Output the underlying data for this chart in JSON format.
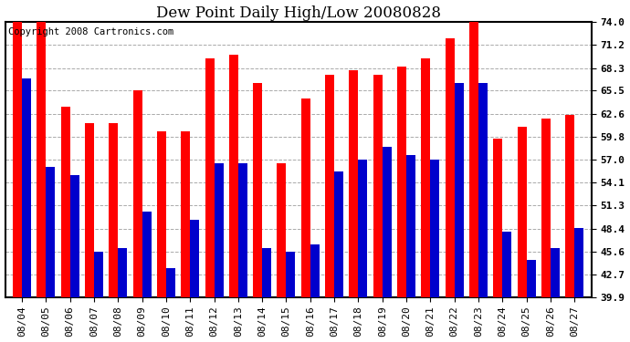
{
  "title": "Dew Point Daily High/Low 20080828",
  "copyright": "Copyright 2008 Cartronics.com",
  "dates": [
    "08/04",
    "08/05",
    "08/06",
    "08/07",
    "08/08",
    "08/09",
    "08/10",
    "08/11",
    "08/12",
    "08/13",
    "08/14",
    "08/15",
    "08/16",
    "08/17",
    "08/18",
    "08/19",
    "08/20",
    "08/21",
    "08/22",
    "08/23",
    "08/24",
    "08/25",
    "08/26",
    "08/27"
  ],
  "highs": [
    74.0,
    74.0,
    63.5,
    61.5,
    61.5,
    65.5,
    60.5,
    60.5,
    69.5,
    70.0,
    66.5,
    56.5,
    64.5,
    67.5,
    68.0,
    67.5,
    68.5,
    69.5,
    72.0,
    74.5,
    59.5,
    61.0,
    62.0,
    62.5
  ],
  "lows": [
    67.0,
    56.0,
    55.0,
    45.5,
    46.0,
    50.5,
    43.5,
    49.5,
    56.5,
    56.5,
    46.0,
    45.5,
    46.5,
    55.5,
    57.0,
    58.5,
    57.5,
    57.0,
    66.5,
    66.5,
    48.0,
    44.5,
    46.0,
    48.5
  ],
  "high_color": "#FF0000",
  "low_color": "#0000CC",
  "ymin": 39.9,
  "ymax": 74.0,
  "yticks": [
    39.9,
    42.7,
    45.6,
    48.4,
    51.3,
    54.1,
    57.0,
    59.8,
    62.6,
    65.5,
    68.3,
    71.2,
    74.0
  ],
  "ytick_labels": [
    "39.9",
    "42.7",
    "45.6",
    "48.4",
    "51.3",
    "54.1",
    "57.0",
    "59.8",
    "62.6",
    "65.5",
    "68.3",
    "71.2",
    "74.0"
  ],
  "bg_color": "#FFFFFF",
  "grid_color": "#AAAAAA",
  "bar_width": 0.38,
  "title_fontsize": 12,
  "tick_fontsize": 8,
  "copyright_fontsize": 7.5
}
